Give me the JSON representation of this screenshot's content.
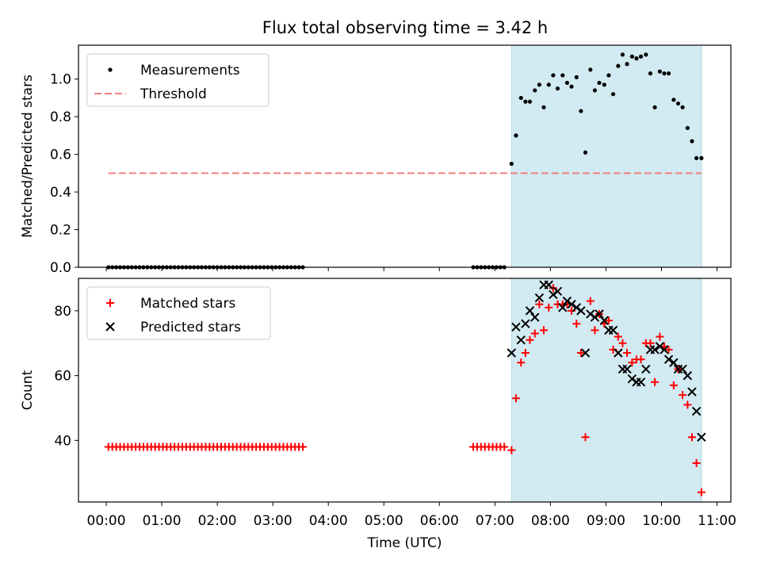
{
  "title": "Flux total observing time = 3.42 h",
  "chart_data": [
    {
      "type": "scatter",
      "panel": "top",
      "ylabel": "Matched/Predicted stars",
      "ylim": [
        0,
        1.18
      ],
      "yticks": [
        0.0,
        0.2,
        0.4,
        0.6,
        0.8,
        1.0
      ],
      "ytick_labels": [
        "0.0",
        "0.2",
        "0.4",
        "0.6",
        "0.8",
        "1.0"
      ],
      "threshold": {
        "label": "Threshold",
        "value": 0.5,
        "x_range": [
          0.04,
          10.72
        ],
        "color": "#f08080"
      },
      "legend": [
        {
          "label": "Measurements",
          "marker": "dot",
          "color": "#000000"
        },
        {
          "label": "Threshold",
          "marker": "dashed-line",
          "color": "#f08080"
        }
      ],
      "series": [
        {
          "name": "Measurements",
          "x": [
            0.04,
            0.11,
            0.18,
            0.25,
            0.32,
            0.39,
            0.46,
            0.53,
            0.6,
            0.67,
            0.74,
            0.81,
            0.88,
            0.95,
            1.02,
            1.09,
            1.16,
            1.23,
            1.3,
            1.37,
            1.44,
            1.51,
            1.58,
            1.65,
            1.72,
            1.79,
            1.86,
            1.93,
            2.0,
            2.07,
            2.14,
            2.21,
            2.28,
            2.35,
            2.42,
            2.49,
            2.56,
            2.63,
            2.7,
            2.77,
            2.84,
            2.91,
            2.98,
            3.05,
            3.12,
            3.19,
            3.26,
            3.33,
            3.4,
            3.47,
            3.54,
            6.61,
            6.68,
            6.75,
            6.82,
            6.89,
            6.96,
            7.03,
            7.1,
            7.17,
            7.3,
            7.38,
            7.47,
            7.55,
            7.63,
            7.72,
            7.8,
            7.88,
            7.97,
            8.05,
            8.13,
            8.22,
            8.3,
            8.38,
            8.47,
            8.55,
            8.63,
            8.72,
            8.8,
            8.88,
            8.97,
            9.05,
            9.13,
            9.22,
            9.3,
            9.38,
            9.47,
            9.55,
            9.63,
            9.72,
            9.8,
            9.88,
            9.97,
            10.05,
            10.13,
            10.22,
            10.3,
            10.38,
            10.47,
            10.55,
            10.63,
            10.72
          ],
          "y": [
            0,
            0,
            0,
            0,
            0,
            0,
            0,
            0,
            0,
            0,
            0,
            0,
            0,
            0,
            0,
            0,
            0,
            0,
            0,
            0,
            0,
            0,
            0,
            0,
            0,
            0,
            0,
            0,
            0,
            0,
            0,
            0,
            0,
            0,
            0,
            0,
            0,
            0,
            0,
            0,
            0,
            0,
            0,
            0,
            0,
            0,
            0,
            0,
            0,
            0,
            0,
            0,
            0,
            0,
            0,
            0,
            0,
            0,
            0,
            0,
            0.55,
            0.7,
            0.9,
            0.88,
            0.88,
            0.94,
            0.97,
            0.85,
            0.97,
            1.02,
            0.95,
            1.02,
            0.98,
            0.96,
            1.01,
            0.83,
            0.61,
            1.05,
            0.94,
            0.98,
            0.97,
            1.02,
            0.92,
            1.07,
            1.13,
            1.08,
            1.12,
            1.11,
            1.12,
            1.13,
            1.03,
            0.85,
            1.04,
            1.03,
            1.03,
            0.89,
            0.87,
            0.85,
            0.74,
            0.67,
            0.58,
            0.58
          ]
        }
      ],
      "shaded_region": {
        "x_range": [
          7.3,
          10.72
        ],
        "color": "#add8e6"
      }
    },
    {
      "type": "scatter",
      "panel": "bottom",
      "ylabel": "Count",
      "xlabel": "Time (UTC)",
      "ylim": [
        21,
        90
      ],
      "yticks": [
        40,
        60,
        80
      ],
      "ytick_labels": [
        "40",
        "60",
        "80"
      ],
      "xlim": [
        -0.5,
        11.25
      ],
      "xticks": [
        0,
        1,
        2,
        3,
        4,
        5,
        6,
        7,
        8,
        9,
        10,
        11
      ],
      "xtick_labels": [
        "00:00",
        "01:00",
        "02:00",
        "03:00",
        "04:00",
        "05:00",
        "06:00",
        "07:00",
        "08:00",
        "09:00",
        "10:00",
        "11:00"
      ],
      "legend": [
        {
          "label": "Matched stars",
          "marker": "plus",
          "color": "#ff0000"
        },
        {
          "label": "Predicted stars",
          "marker": "x",
          "color": "#000000"
        }
      ],
      "series": [
        {
          "name": "Matched stars",
          "marker": "plus",
          "color": "#ff0000",
          "x": [
            0.04,
            0.11,
            0.18,
            0.25,
            0.32,
            0.39,
            0.46,
            0.53,
            0.6,
            0.67,
            0.74,
            0.81,
            0.88,
            0.95,
            1.02,
            1.09,
            1.16,
            1.23,
            1.3,
            1.37,
            1.44,
            1.51,
            1.58,
            1.65,
            1.72,
            1.79,
            1.86,
            1.93,
            2.0,
            2.07,
            2.14,
            2.21,
            2.28,
            2.35,
            2.42,
            2.49,
            2.56,
            2.63,
            2.7,
            2.77,
            2.84,
            2.91,
            2.98,
            3.05,
            3.12,
            3.19,
            3.26,
            3.33,
            3.4,
            3.47,
            3.54,
            6.61,
            6.68,
            6.75,
            6.82,
            6.89,
            6.96,
            7.03,
            7.1,
            7.17,
            7.3,
            7.38,
            7.47,
            7.55,
            7.63,
            7.72,
            7.8,
            7.88,
            7.97,
            8.05,
            8.13,
            8.22,
            8.3,
            8.38,
            8.47,
            8.55,
            8.63,
            8.72,
            8.8,
            8.88,
            8.97,
            9.05,
            9.13,
            9.22,
            9.3,
            9.38,
            9.47,
            9.55,
            9.63,
            9.72,
            9.8,
            9.88,
            9.97,
            10.05,
            10.13,
            10.22,
            10.3,
            10.38,
            10.47,
            10.55,
            10.63,
            10.72
          ],
          "y": [
            38,
            38,
            38,
            38,
            38,
            38,
            38,
            38,
            38,
            38,
            38,
            38,
            38,
            38,
            38,
            38,
            38,
            38,
            38,
            38,
            38,
            38,
            38,
            38,
            38,
            38,
            38,
            38,
            38,
            38,
            38,
            38,
            38,
            38,
            38,
            38,
            38,
            38,
            38,
            38,
            38,
            38,
            38,
            38,
            38,
            38,
            38,
            38,
            38,
            38,
            38,
            38,
            38,
            38,
            38,
            38,
            38,
            38,
            38,
            38,
            37,
            53,
            64,
            67,
            71,
            73,
            82,
            74,
            81,
            87,
            82,
            82,
            82,
            80,
            76,
            67,
            41,
            83,
            74,
            79,
            76,
            77,
            68,
            72,
            70,
            67,
            64,
            65,
            65,
            70,
            70,
            58,
            72,
            69,
            68,
            57,
            62,
            54,
            51,
            41,
            33,
            24
          ]
        },
        {
          "name": "Predicted stars",
          "marker": "x",
          "color": "#000000",
          "x": [
            7.3,
            7.38,
            7.47,
            7.55,
            7.63,
            7.72,
            7.8,
            7.88,
            7.97,
            8.05,
            8.13,
            8.22,
            8.3,
            8.38,
            8.47,
            8.55,
            8.63,
            8.72,
            8.8,
            8.88,
            8.97,
            9.05,
            9.13,
            9.22,
            9.3,
            9.38,
            9.47,
            9.55,
            9.63,
            9.72,
            9.8,
            9.88,
            9.97,
            10.05,
            10.13,
            10.22,
            10.3,
            10.38,
            10.47,
            10.55,
            10.63,
            10.72
          ],
          "y": [
            67,
            75,
            71,
            76,
            80,
            78,
            84,
            88,
            88,
            85,
            86,
            81,
            83,
            82,
            81,
            80,
            67,
            79,
            78,
            79,
            77,
            74,
            74,
            67,
            62,
            62,
            59,
            58,
            58,
            62,
            68,
            68,
            69,
            68,
            65,
            64,
            62,
            62,
            60,
            55,
            49,
            41
          ]
        }
      ],
      "shaded_region": {
        "x_range": [
          7.3,
          10.72
        ],
        "color": "#add8e6"
      }
    }
  ]
}
